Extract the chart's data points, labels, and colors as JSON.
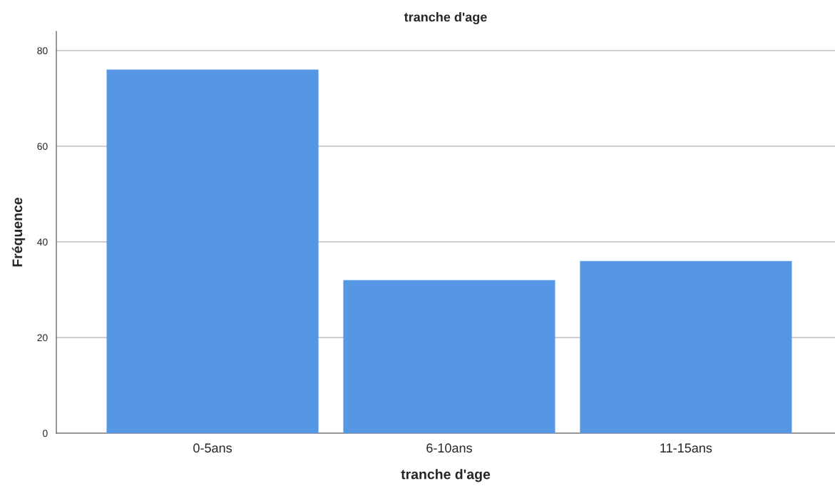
{
  "chart_data": {
    "type": "bar",
    "title": "tranche d'age",
    "xlabel": "tranche d'age",
    "ylabel": "Fréquence",
    "categories": [
      "0-5ans",
      "6-10ans",
      "11-15ans"
    ],
    "values": [
      76,
      32,
      36
    ],
    "color": "#5596e5",
    "ylim": [
      0,
      84
    ],
    "yticks": [
      0,
      20,
      40,
      60,
      80
    ],
    "grid": "y"
  }
}
